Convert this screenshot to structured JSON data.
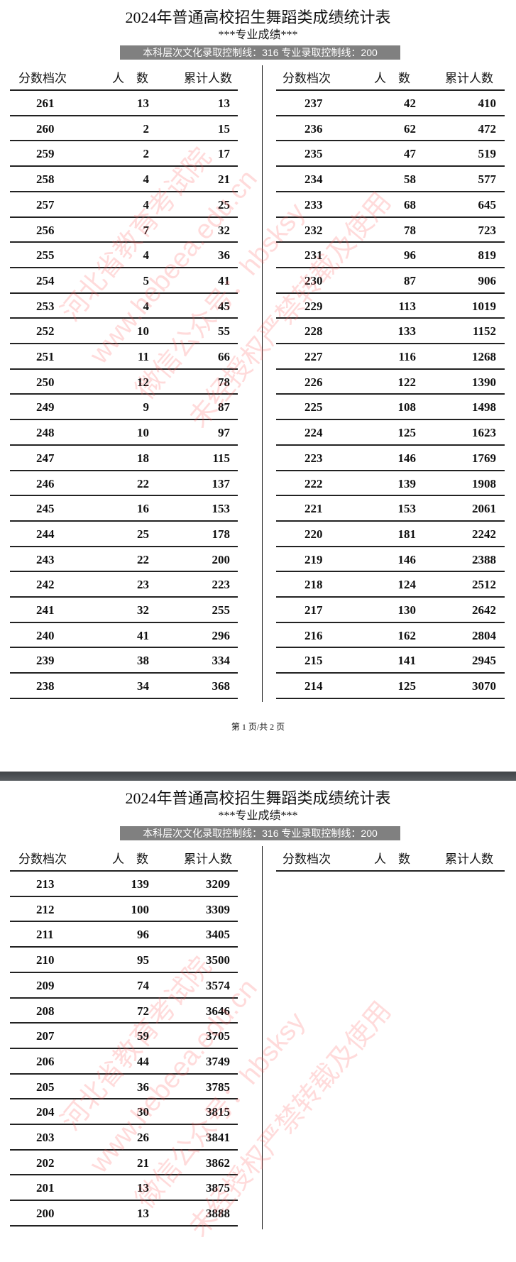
{
  "title": "2024年普通高校招生舞蹈类成绩统计表",
  "subtitle": "***专业成绩***",
  "banner": "本科层次文化录取控制线：316 专业录取控制线：200",
  "headers": {
    "score": "分数档次",
    "count": "人　数",
    "cumulative": "累计人数"
  },
  "footer": "第 1 页/共 2 页",
  "watermark": [
    "河北省教育考试院",
    "www.hebeea.edu.cn",
    "微信公众号：hbsksy",
    "未经授权严禁转载及使用"
  ],
  "colors": {
    "banner_bg": "#808080",
    "watermark": "#ff5a5a",
    "page_separator": "#4a4e52"
  },
  "pages": [
    {
      "left": [
        [
          "261",
          "13",
          "13"
        ],
        [
          "260",
          "2",
          "15"
        ],
        [
          "259",
          "2",
          "17"
        ],
        [
          "258",
          "4",
          "21"
        ],
        [
          "257",
          "4",
          "25"
        ],
        [
          "256",
          "7",
          "32"
        ],
        [
          "255",
          "4",
          "36"
        ],
        [
          "254",
          "5",
          "41"
        ],
        [
          "253",
          "4",
          "45"
        ],
        [
          "252",
          "10",
          "55"
        ],
        [
          "251",
          "11",
          "66"
        ],
        [
          "250",
          "12",
          "78"
        ],
        [
          "249",
          "9",
          "87"
        ],
        [
          "248",
          "10",
          "97"
        ],
        [
          "247",
          "18",
          "115"
        ],
        [
          "246",
          "22",
          "137"
        ],
        [
          "245",
          "16",
          "153"
        ],
        [
          "244",
          "25",
          "178"
        ],
        [
          "243",
          "22",
          "200"
        ],
        [
          "242",
          "23",
          "223"
        ],
        [
          "241",
          "32",
          "255"
        ],
        [
          "240",
          "41",
          "296"
        ],
        [
          "239",
          "38",
          "334"
        ],
        [
          "238",
          "34",
          "368"
        ]
      ],
      "right": [
        [
          "237",
          "42",
          "410"
        ],
        [
          "236",
          "62",
          "472"
        ],
        [
          "235",
          "47",
          "519"
        ],
        [
          "234",
          "58",
          "577"
        ],
        [
          "233",
          "68",
          "645"
        ],
        [
          "232",
          "78",
          "723"
        ],
        [
          "231",
          "96",
          "819"
        ],
        [
          "230",
          "87",
          "906"
        ],
        [
          "229",
          "113",
          "1019"
        ],
        [
          "228",
          "133",
          "1152"
        ],
        [
          "227",
          "116",
          "1268"
        ],
        [
          "226",
          "122",
          "1390"
        ],
        [
          "225",
          "108",
          "1498"
        ],
        [
          "224",
          "125",
          "1623"
        ],
        [
          "223",
          "146",
          "1769"
        ],
        [
          "222",
          "139",
          "1908"
        ],
        [
          "221",
          "153",
          "2061"
        ],
        [
          "220",
          "181",
          "2242"
        ],
        [
          "219",
          "146",
          "2388"
        ],
        [
          "218",
          "124",
          "2512"
        ],
        [
          "217",
          "130",
          "2642"
        ],
        [
          "216",
          "162",
          "2804"
        ],
        [
          "215",
          "141",
          "2945"
        ],
        [
          "214",
          "125",
          "3070"
        ]
      ]
    },
    {
      "left": [
        [
          "213",
          "139",
          "3209"
        ],
        [
          "212",
          "100",
          "3309"
        ],
        [
          "211",
          "96",
          "3405"
        ],
        [
          "210",
          "95",
          "3500"
        ],
        [
          "209",
          "74",
          "3574"
        ],
        [
          "208",
          "72",
          "3646"
        ],
        [
          "207",
          "59",
          "3705"
        ],
        [
          "206",
          "44",
          "3749"
        ],
        [
          "205",
          "36",
          "3785"
        ],
        [
          "204",
          "30",
          "3815"
        ],
        [
          "203",
          "26",
          "3841"
        ],
        [
          "202",
          "21",
          "3862"
        ],
        [
          "201",
          "13",
          "3875"
        ],
        [
          "200",
          "13",
          "3888"
        ]
      ],
      "right": []
    }
  ]
}
